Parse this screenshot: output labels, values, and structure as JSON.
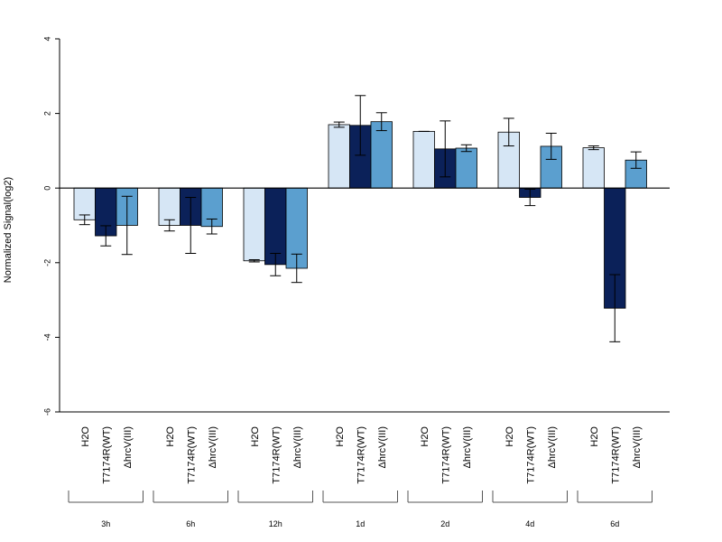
{
  "colors": {
    "H2O": "#d6e6f5",
    "T7174R(WT)": "#0b2159",
    "ΔhrcV(III)": "#5b9fcf",
    "axis": "#000000"
  },
  "chart_data": {
    "type": "bar",
    "title": "",
    "xlabel": "",
    "ylabel": "Normalized Signal(log2)",
    "ylim": [
      -6,
      4
    ],
    "yticks": [
      -6,
      -4,
      -2,
      0,
      2,
      4
    ],
    "ytick_labels": [
      "-6",
      "-4",
      "-2",
      "0",
      "2",
      "4"
    ],
    "grid": false,
    "categories": [
      "3h",
      "6h",
      "12h",
      "1d",
      "2d",
      "4d",
      "6d"
    ],
    "series": [
      {
        "name": "H2O",
        "values": [
          -0.85,
          -1.0,
          -1.95,
          1.7,
          1.52,
          1.5,
          1.08
        ],
        "errors": [
          0.13,
          0.15,
          0.03,
          0.07,
          0.0,
          0.37,
          0.05
        ]
      },
      {
        "name": "T7174R(WT)",
        "values": [
          -1.28,
          -1.0,
          -2.05,
          1.68,
          1.05,
          -0.25,
          -3.22
        ],
        "errors": [
          0.27,
          0.75,
          0.3,
          0.8,
          0.75,
          0.22,
          0.9
        ]
      },
      {
        "name": "ΔhrcV(III)",
        "values": [
          -1.0,
          -1.03,
          -2.15,
          1.78,
          1.07,
          1.12,
          0.75
        ],
        "errors": [
          0.78,
          0.2,
          0.38,
          0.24,
          0.09,
          0.35,
          0.22
        ]
      }
    ]
  }
}
